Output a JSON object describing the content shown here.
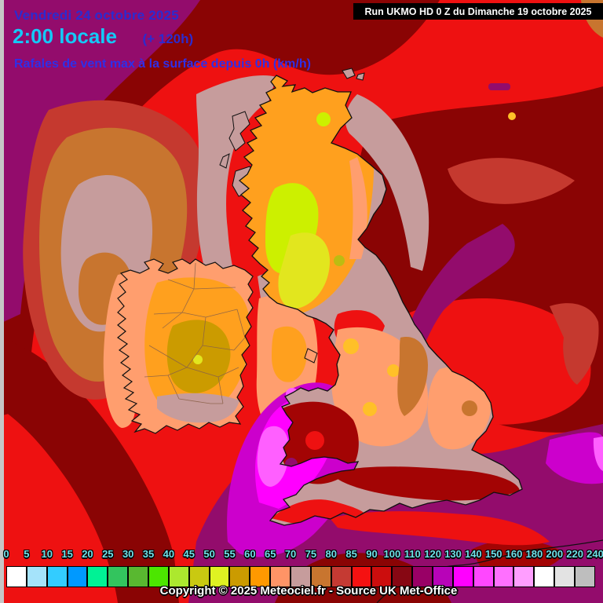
{
  "header": {
    "date_line": "Vendredi 24 octobre 2025",
    "time_line": "2:00 locale",
    "offset_label": "(+ 120h)",
    "subtitle": "Rafales de vent max à la surface depuis 0h (km/h)",
    "date_color": "#2B2BD0",
    "time_color": "#14C9F7",
    "subtitle_color": "#2F2FE8"
  },
  "run_info": {
    "label": "Run UKMO HD 0 Z du Dimanche 19 octobre 2025",
    "bg": "#000000",
    "color": "#FFFFFF"
  },
  "legend": {
    "unit": "km/h",
    "label_color": "#70E0E8",
    "labels": [
      "0",
      "5",
      "10",
      "15",
      "20",
      "25",
      "30",
      "35",
      "40",
      "45",
      "50",
      "55",
      "60",
      "65",
      "70",
      "75",
      "80",
      "85",
      "90",
      "100",
      "110",
      "120",
      "130",
      "140",
      "150",
      "160",
      "180",
      "200",
      "220",
      "240"
    ],
    "swatches": [
      {
        "color": "#FFFFFF"
      },
      {
        "color": "#A5E3FA"
      },
      {
        "color": "#33CCFF"
      },
      {
        "color": "#0099FF"
      },
      {
        "color": "#00F295"
      },
      {
        "color": "#33C45E"
      },
      {
        "color": "#59B830"
      },
      {
        "color": "#4CE600"
      },
      {
        "color": "#ACE82E"
      },
      {
        "color": "#C9C911"
      },
      {
        "color": "#DFF222"
      },
      {
        "color": "#CB9B00"
      },
      {
        "color": "#FF9900"
      },
      {
        "color": "#FF9466"
      },
      {
        "color": "#C69C9C"
      },
      {
        "color": "#C8752F"
      },
      {
        "color": "#C53A33"
      },
      {
        "color": "#F51111"
      },
      {
        "color": "#CC0D0D"
      },
      {
        "color": "#870713"
      },
      {
        "color": "#990066"
      },
      {
        "color": "#B803B8"
      },
      {
        "color": "#FF00FF"
      },
      {
        "color": "#FF47FF"
      },
      {
        "color": "#FF70FF"
      },
      {
        "color": "#FF9EFF"
      },
      {
        "color": "#FFFFFF"
      },
      {
        "color": "#E3E3E3"
      },
      {
        "color": "#BEBEBE"
      }
    ]
  },
  "footer": {
    "copyright": "Copyright © 2025 Meteociel.fr - Source UK Met-Office"
  },
  "map": {
    "palette": {
      "gray": "#C6C6C6",
      "red": "#EE1111",
      "dark_red": "#A30404",
      "maroon": "#8A0404",
      "brick": "#C5392F",
      "tan": "#C8752F",
      "mauve": "#C69C9C",
      "salmon": "#FF9E6E",
      "orange": "#FFA01E",
      "amber": "#FFC028",
      "mustard": "#CB9B00",
      "olive": "#BCBC12",
      "yellow": "#E2E61E",
      "chartreuse": "#CCF000",
      "purple": "#930C6C",
      "magenta": "#CC00CC",
      "bright_magenta": "#FF00FF",
      "light_pink": "#FF5FFF",
      "pale_pink": "#FF9EFF"
    }
  }
}
